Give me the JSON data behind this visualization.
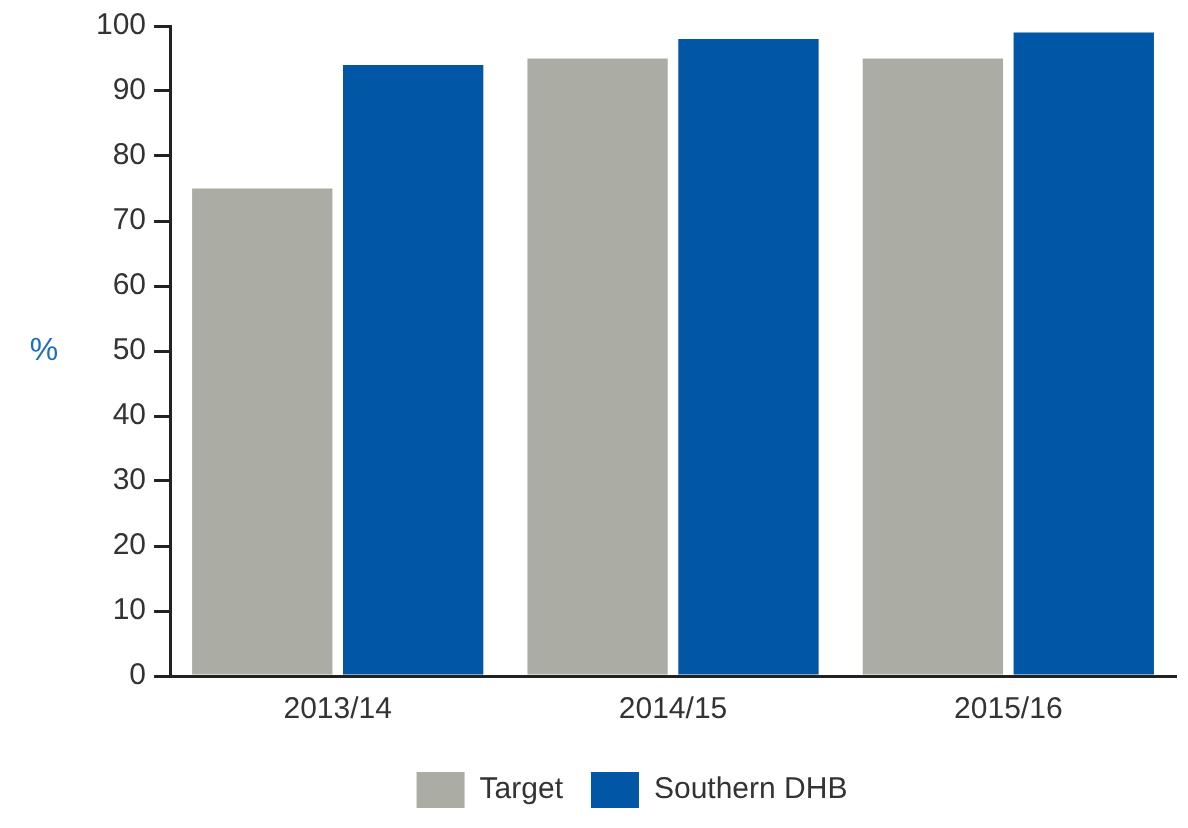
{
  "chart_data": {
    "type": "bar",
    "ylabel": "%",
    "categories": [
      "2013/14",
      "2014/15",
      "2015/16"
    ],
    "series": [
      {
        "name": "Target",
        "color": "#abada4",
        "values": [
          75,
          95,
          95
        ]
      },
      {
        "name": "Southern DHB",
        "color": "#0256a6",
        "values": [
          94,
          98,
          99
        ]
      }
    ],
    "ylim": [
      0,
      100
    ],
    "yticks": [
      0,
      10,
      20,
      30,
      40,
      50,
      60,
      70,
      80,
      90,
      100
    ],
    "grid": false,
    "legend": "bottom"
  }
}
